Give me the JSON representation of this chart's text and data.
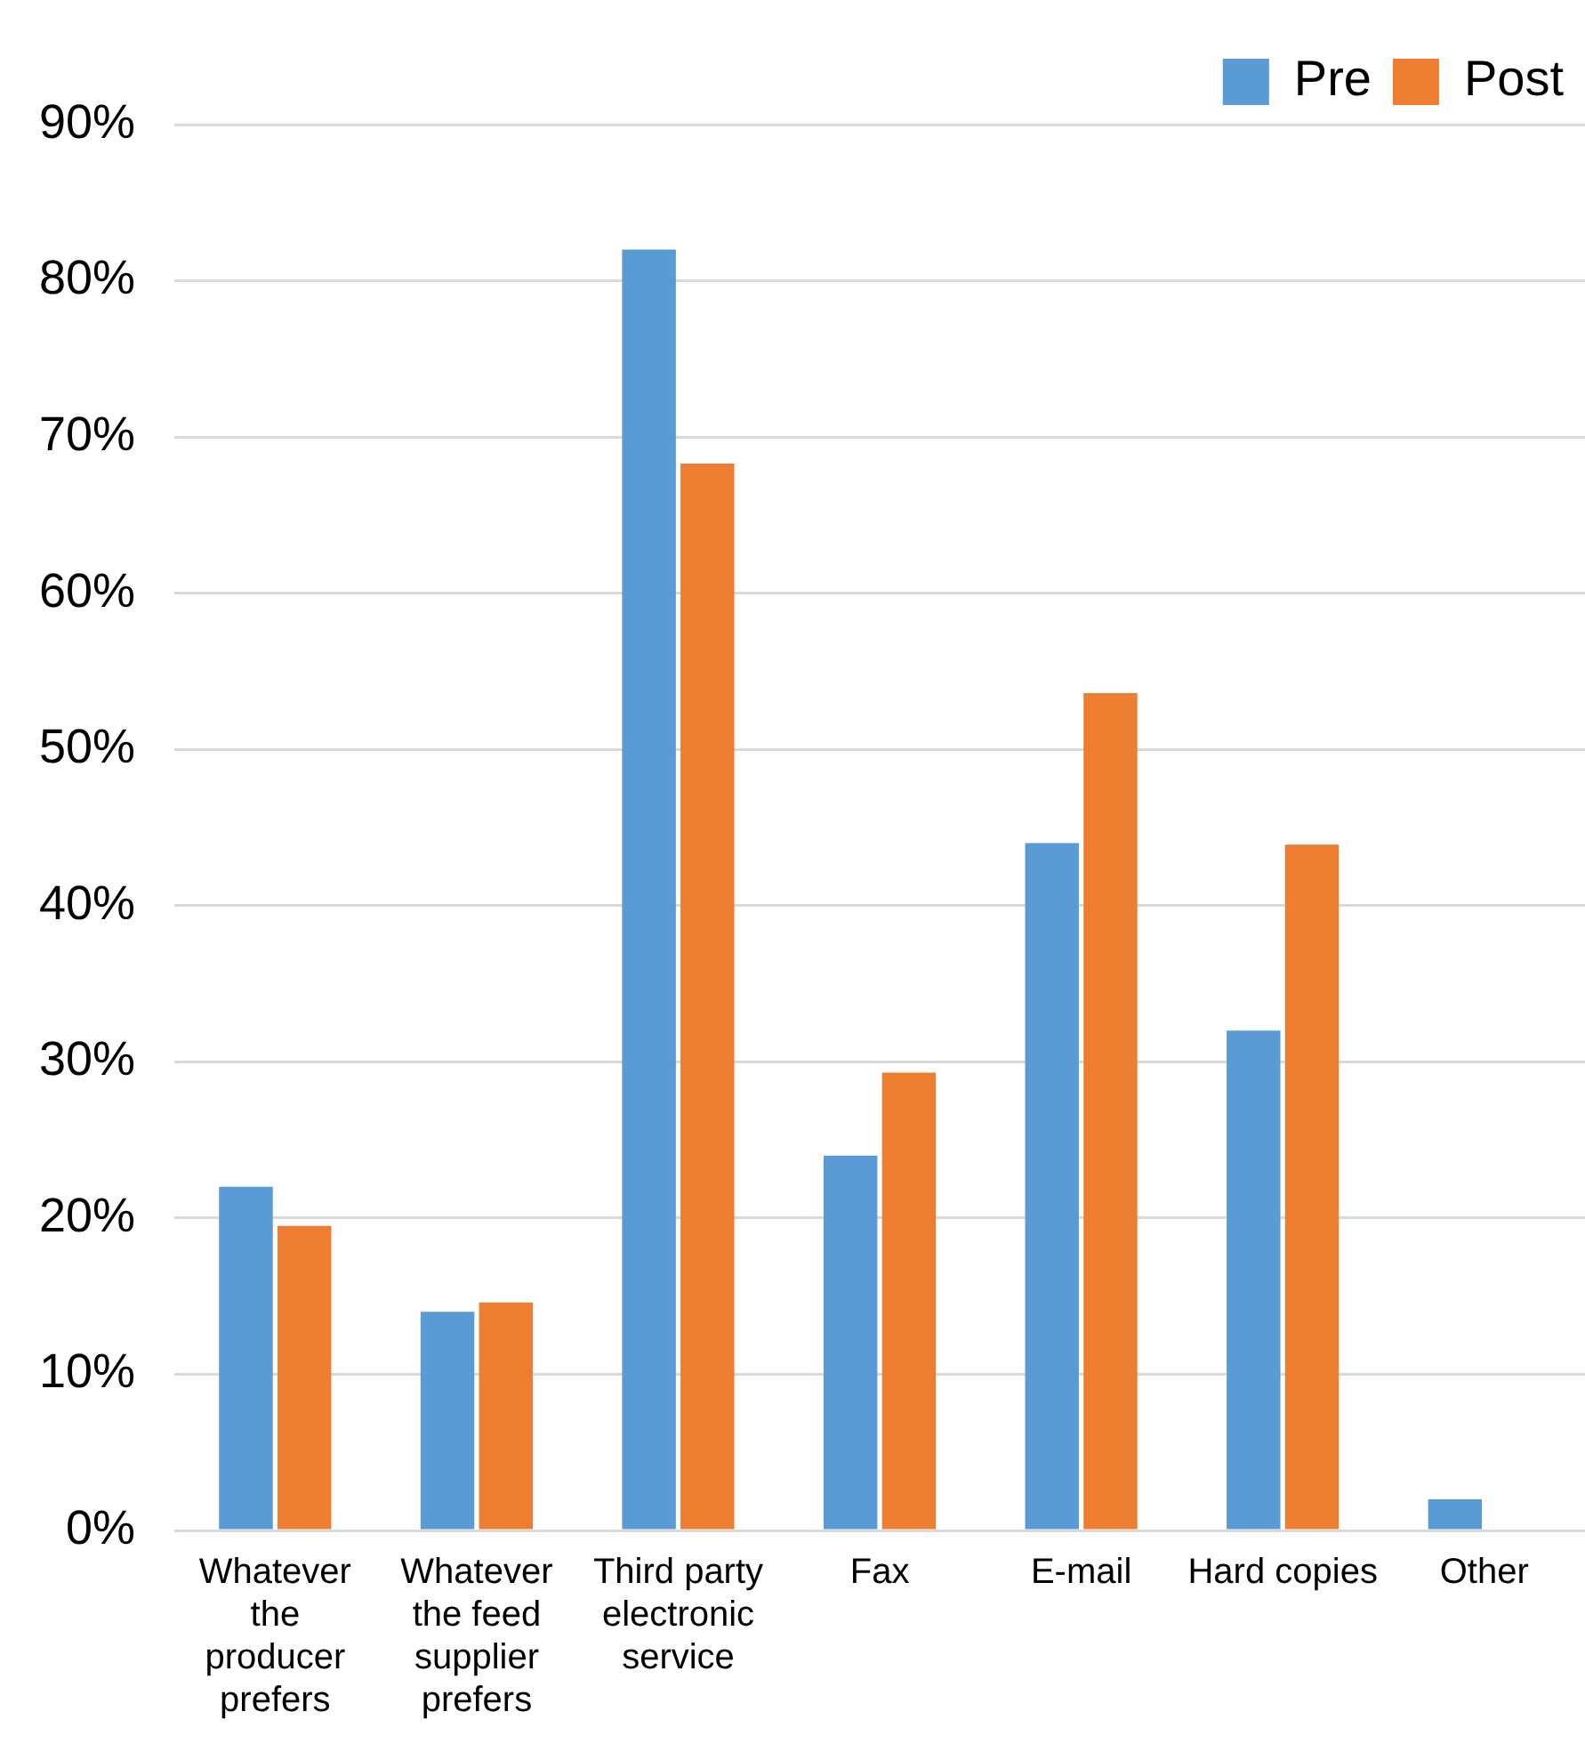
{
  "chart_data": {
    "type": "bar",
    "categories": [
      "Whatever the producer prefers",
      "Whatever the feed supplier prefers",
      "Third party electronic service",
      "Fax",
      "E-mail",
      "Hard copies",
      "Other"
    ],
    "series": [
      {
        "name": "Pre",
        "color": "#5b9bd5",
        "values": [
          22,
          14,
          82,
          24,
          44,
          32,
          2
        ]
      },
      {
        "name": "Post",
        "color": "#ed7d31",
        "values": [
          19.5,
          14.6,
          68.3,
          29.3,
          53.6,
          43.9,
          0
        ]
      }
    ],
    "ylim": [
      0,
      90
    ],
    "yticks": [
      {
        "value": 0,
        "label": "0%"
      },
      {
        "value": 10,
        "label": "10%"
      },
      {
        "value": 20,
        "label": "20%"
      },
      {
        "value": 30,
        "label": "30%"
      },
      {
        "value": 40,
        "label": "40%"
      },
      {
        "value": 50,
        "label": "50%"
      },
      {
        "value": 60,
        "label": "60%"
      },
      {
        "value": 70,
        "label": "70%"
      },
      {
        "value": 80,
        "label": "80%"
      },
      {
        "value": 90,
        "label": "90%"
      }
    ],
    "grid": "y",
    "legend": "top right"
  }
}
